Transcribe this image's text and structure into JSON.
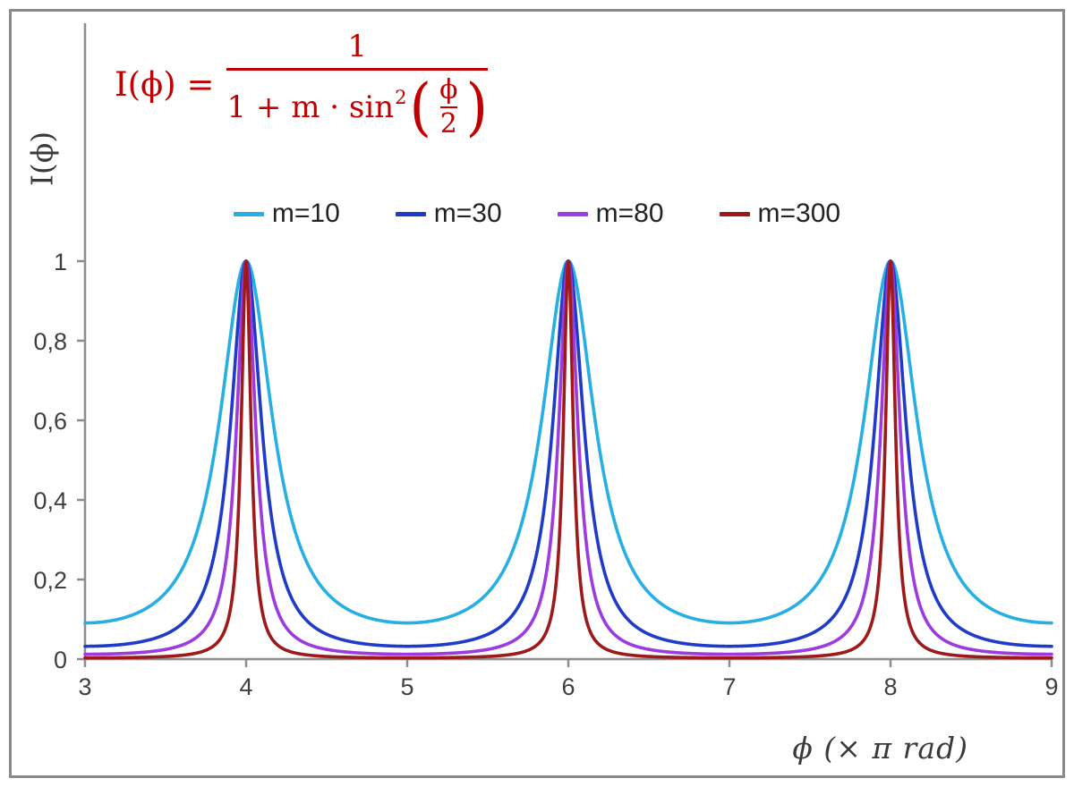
{
  "chart_data": {
    "type": "line",
    "formula_text": "I(ϕ) = 1 / (1 + m · sin²(ϕ/2))",
    "xlabel": "ϕ  (× π rad)",
    "ylabel": "I(ϕ)",
    "x_range": [
      3,
      9
    ],
    "y_range": [
      0,
      1
    ],
    "x_ticks": [
      "3",
      "4",
      "5",
      "6",
      "7",
      "8",
      "9"
    ],
    "x_tick_values": [
      3,
      4,
      5,
      6,
      7,
      8,
      9
    ],
    "y_ticks": [
      {
        "value": 0,
        "label": "0"
      },
      {
        "value": 0.2,
        "label": "0,2"
      },
      {
        "value": 0.4,
        "label": "0,4"
      },
      {
        "value": 0.6,
        "label": "0,6"
      },
      {
        "value": 0.8,
        "label": "0,8"
      },
      {
        "value": 1,
        "label": "1"
      }
    ],
    "series": [
      {
        "name": "m=10",
        "m": 10,
        "color": "#27AEE3"
      },
      {
        "name": "m=30",
        "m": 30,
        "color": "#1E3CC8"
      },
      {
        "name": "m=80",
        "m": 80,
        "color": "#9C3BDF"
      },
      {
        "name": "m=300",
        "m": 300,
        "color": "#9E1A1A"
      }
    ],
    "function": "I(x) = 1 / (1 + m * sin^2(x * PI / 2)) with x measured in units of pi rad",
    "peaks": {
      "x": [
        4,
        6,
        8
      ],
      "value": 1
    },
    "grid": false,
    "legend_position": "top-center",
    "axis_color": "#8C8C8C"
  },
  "formula": {
    "lhs": "I(ϕ) =",
    "numerator": "1",
    "denominator_prefix": "1 + m · sin",
    "denominator_exponent": "2",
    "open_paren": "(",
    "close_paren": ")",
    "inner_numerator": "ϕ",
    "inner_denominator": "2",
    "color": "#C00000"
  }
}
